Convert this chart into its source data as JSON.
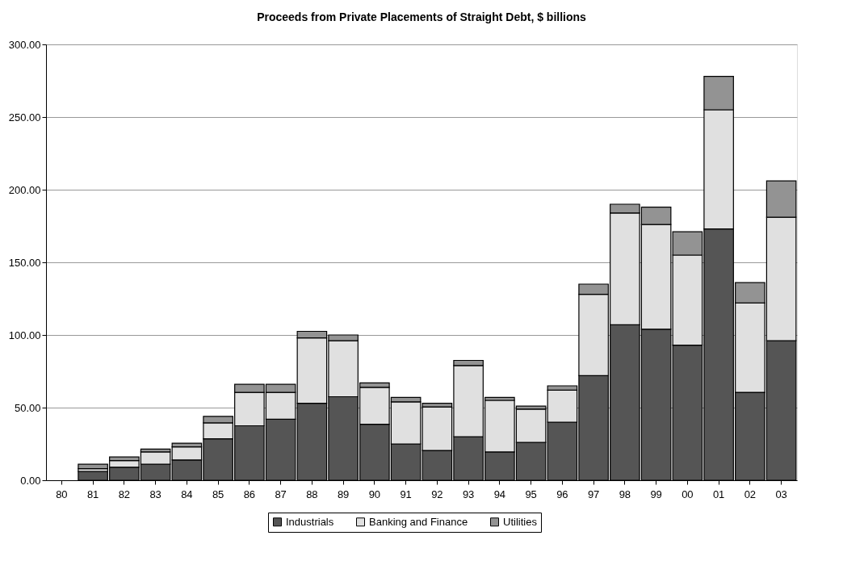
{
  "chart_data": {
    "type": "bar",
    "title": "Proceeds from Private Placements of Straight Debt, $ billions",
    "categories": [
      "80",
      "81",
      "82",
      "83",
      "84",
      "85",
      "86",
      "87",
      "88",
      "89",
      "90",
      "91",
      "92",
      "93",
      "94",
      "95",
      "96",
      "97",
      "98",
      "99",
      "00",
      "01",
      "02",
      "03"
    ],
    "stacked": true,
    "series": [
      {
        "name": "Industrials",
        "color": "#555555",
        "values": [
          0,
          6,
          9,
          11,
          14,
          28.5,
          37.5,
          42,
          53,
          57.5,
          38.5,
          25,
          20.5,
          30,
          19.5,
          26,
          40,
          72,
          107,
          104,
          93,
          173,
          60.5,
          96
        ]
      },
      {
        "name": "Banking and Finance",
        "color": "#e0e0e0",
        "values": [
          0,
          2,
          4.5,
          8.5,
          9,
          11,
          23,
          18.5,
          45,
          38.5,
          25.5,
          29,
          30,
          49,
          35.5,
          23,
          22,
          56,
          77,
          72,
          62,
          82,
          61.5,
          85
        ]
      },
      {
        "name": "Utilities",
        "color": "#939393",
        "values": [
          0,
          3,
          2.5,
          2,
          2.5,
          4.5,
          5.5,
          5.5,
          4.5,
          4,
          3,
          3,
          2.5,
          3.5,
          2,
          2,
          3,
          7,
          6,
          12,
          16,
          23,
          14,
          25
        ]
      }
    ],
    "ylim": [
      0,
      300
    ],
    "yticks": [
      {
        "value": 0,
        "label": "0.00"
      },
      {
        "value": 50,
        "label": "50.00"
      },
      {
        "value": 100,
        "label": "100.00"
      },
      {
        "value": 150,
        "label": "150.00"
      },
      {
        "value": 200,
        "label": "200.00"
      },
      {
        "value": 250,
        "label": "250.00"
      },
      {
        "value": 300,
        "label": "300.00"
      }
    ],
    "grid": "y",
    "legend": "bottom"
  }
}
